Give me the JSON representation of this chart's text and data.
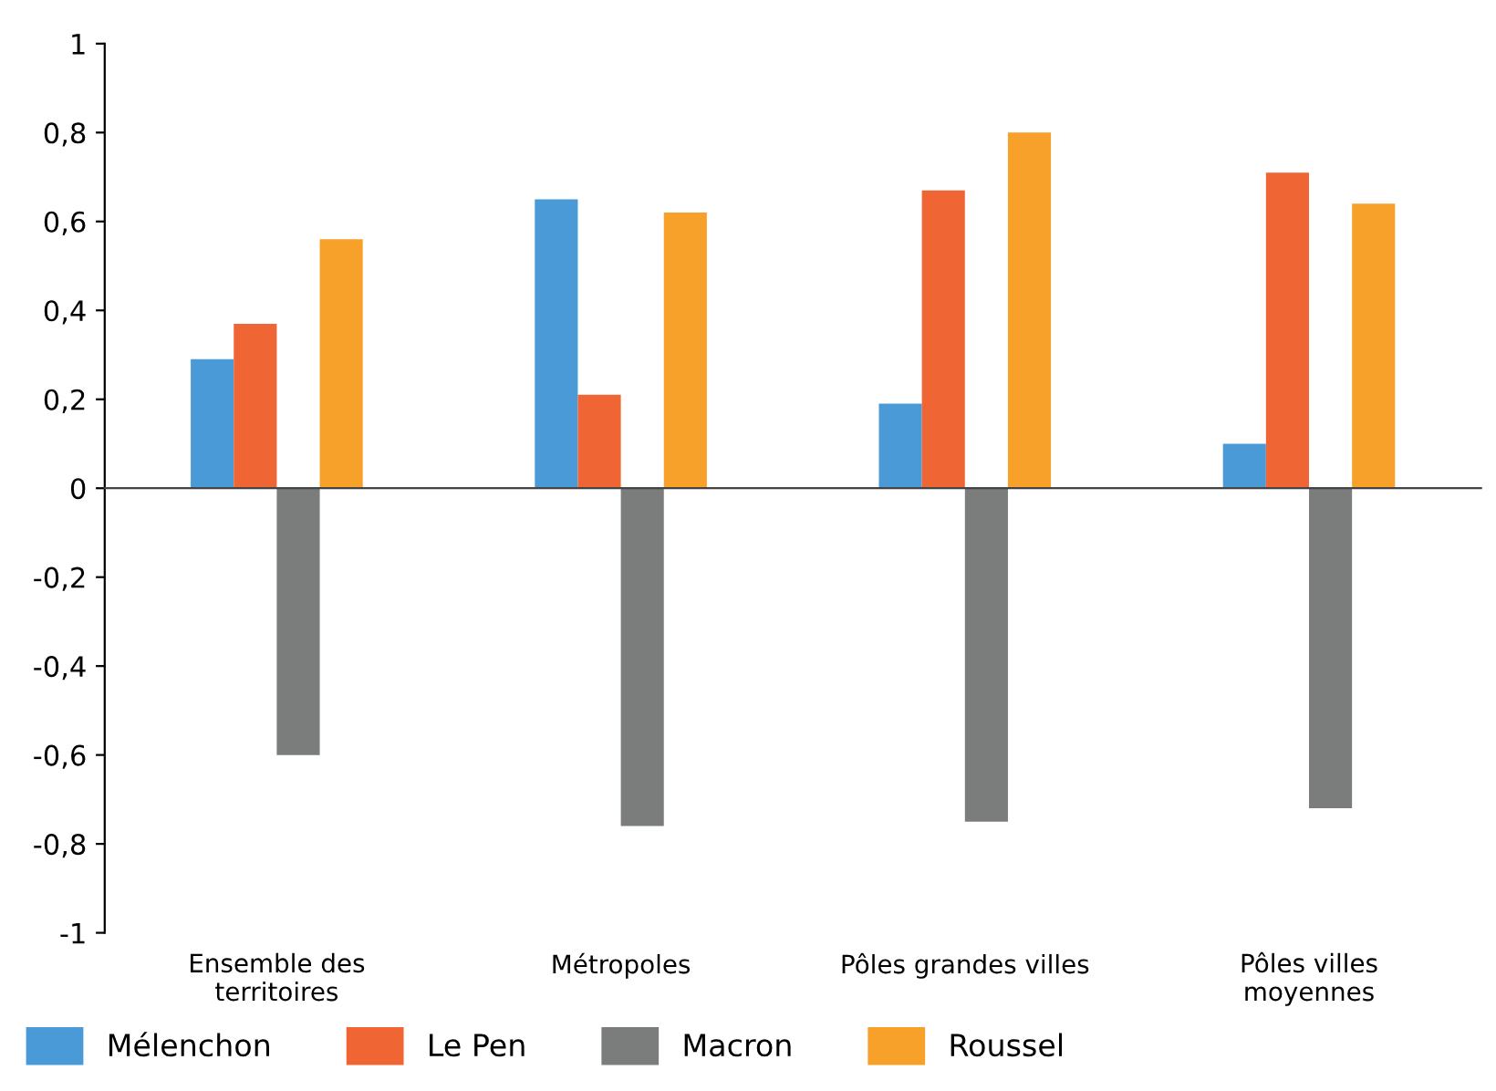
{
  "chart_data": {
    "type": "bar",
    "categories": [
      "Ensemble des\nterritoires",
      "Métropoles",
      "Pôles grandes villes",
      "Pôles villes\nmoyennes"
    ],
    "series": [
      {
        "name": "Mélenchon",
        "color": "#4a9ad8",
        "values": [
          0.29,
          0.65,
          0.19,
          0.1
        ]
      },
      {
        "name": "Le Pen",
        "color": "#f06534",
        "values": [
          0.37,
          0.21,
          0.67,
          0.71
        ]
      },
      {
        "name": "Macron",
        "color": "#7a7d7b",
        "values": [
          -0.6,
          -0.76,
          -0.75,
          -0.72
        ]
      },
      {
        "name": "Roussel",
        "color": "#f7a12b",
        "values": [
          0.56,
          0.62,
          0.8,
          0.64
        ]
      }
    ],
    "ylim": [
      -1,
      1
    ],
    "yticks": [
      {
        "value": -1,
        "label": "-1"
      },
      {
        "value": -0.8,
        "label": "-0,8"
      },
      {
        "value": -0.6,
        "label": "-0,6"
      },
      {
        "value": -0.4,
        "label": "-0,4"
      },
      {
        "value": -0.2,
        "label": "-0,2"
      },
      {
        "value": 0,
        "label": "0"
      },
      {
        "value": 0.2,
        "label": "0,2"
      },
      {
        "value": 0.4,
        "label": "0,4"
      },
      {
        "value": 0.6,
        "label": "0,6"
      },
      {
        "value": 0.8,
        "label": "0,8"
      },
      {
        "value": 1,
        "label": "1"
      }
    ],
    "legend": "bottom left"
  }
}
